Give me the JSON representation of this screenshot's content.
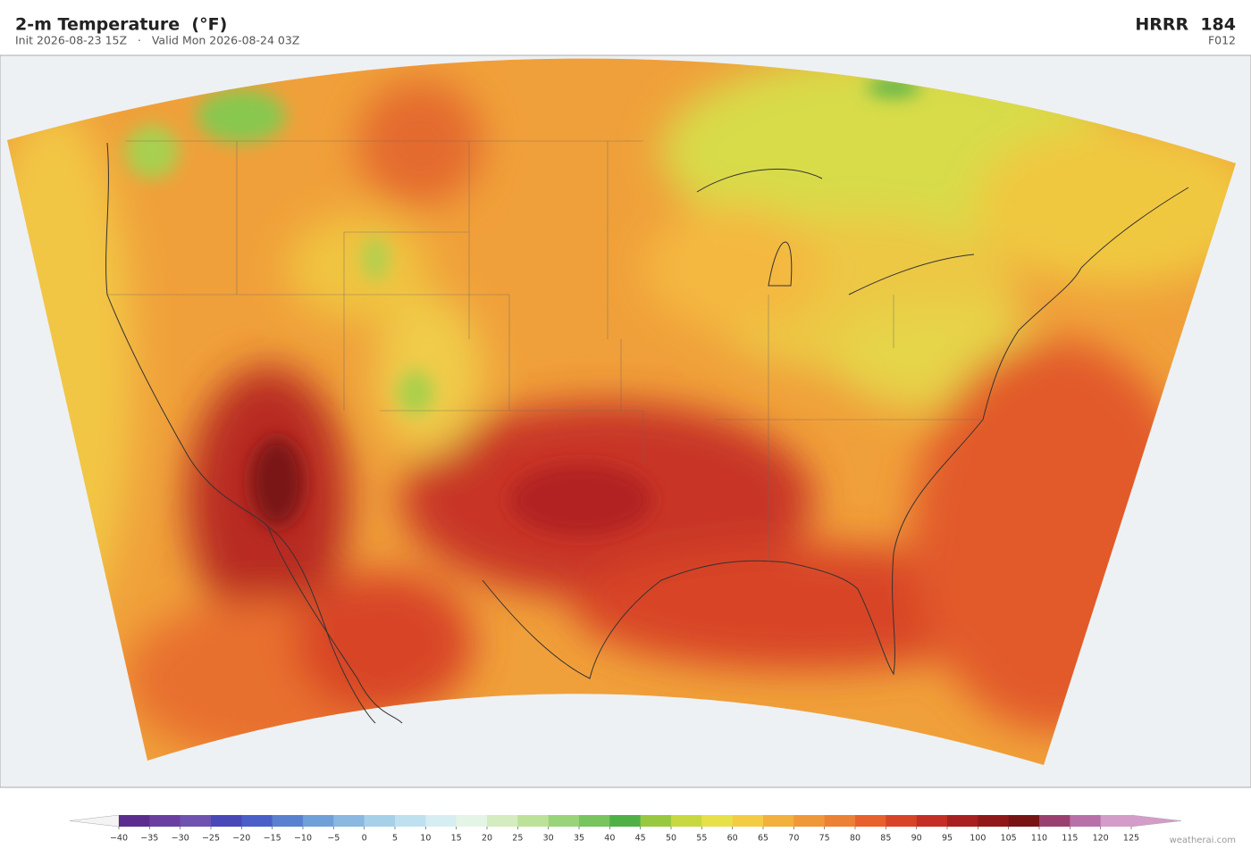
{
  "header": {
    "title": "2-m Temperature  (°F)",
    "subtitle": "Init 2026-08-23 15Z   ·   Valid Mon 2026-08-24 03Z",
    "model": "HRRR  184",
    "forecast_hour": "F012"
  },
  "colorbar": {
    "ticks": [
      {
        "value": -40,
        "label": "−40"
      },
      {
        "value": -35,
        "label": "−35"
      },
      {
        "value": -30,
        "label": "−30"
      },
      {
        "value": -25,
        "label": "−25"
      },
      {
        "value": -20,
        "label": "−20"
      },
      {
        "value": -15,
        "label": "−15"
      },
      {
        "value": -10,
        "label": "−10"
      },
      {
        "value": -5,
        "label": "−5"
      },
      0,
      5,
      10,
      15,
      20,
      25,
      30,
      35,
      40,
      45,
      50,
      55,
      60,
      65,
      70,
      75,
      80,
      85,
      90,
      95,
      100,
      105,
      110,
      115,
      120,
      125
    ],
    "colors": [
      "#5b2d8e",
      "#6b3fa0",
      "#7052b0",
      "#4848b8",
      "#4a5fc8",
      "#5a80d0",
      "#70a0d8",
      "#8ab8e0",
      "#a6d0e8",
      "#bfe0ee",
      "#d6eef2",
      "#e4f4e6",
      "#d4ecc0",
      "#bce29a",
      "#9ad47a",
      "#78c45e",
      "#50b048",
      "#98c840",
      "#c8d840",
      "#e8e048",
      "#f4cc44",
      "#f2b03c",
      "#f09838",
      "#ec8034",
      "#e8602c",
      "#d84428",
      "#c42e24",
      "#a82020",
      "#901818",
      "#781414",
      "#9a4070",
      "#b870a8",
      "#d49cc8"
    ],
    "under_color": "#f4f4f4",
    "over_color": "#d49cc8"
  },
  "credit": "weatherai.com"
}
